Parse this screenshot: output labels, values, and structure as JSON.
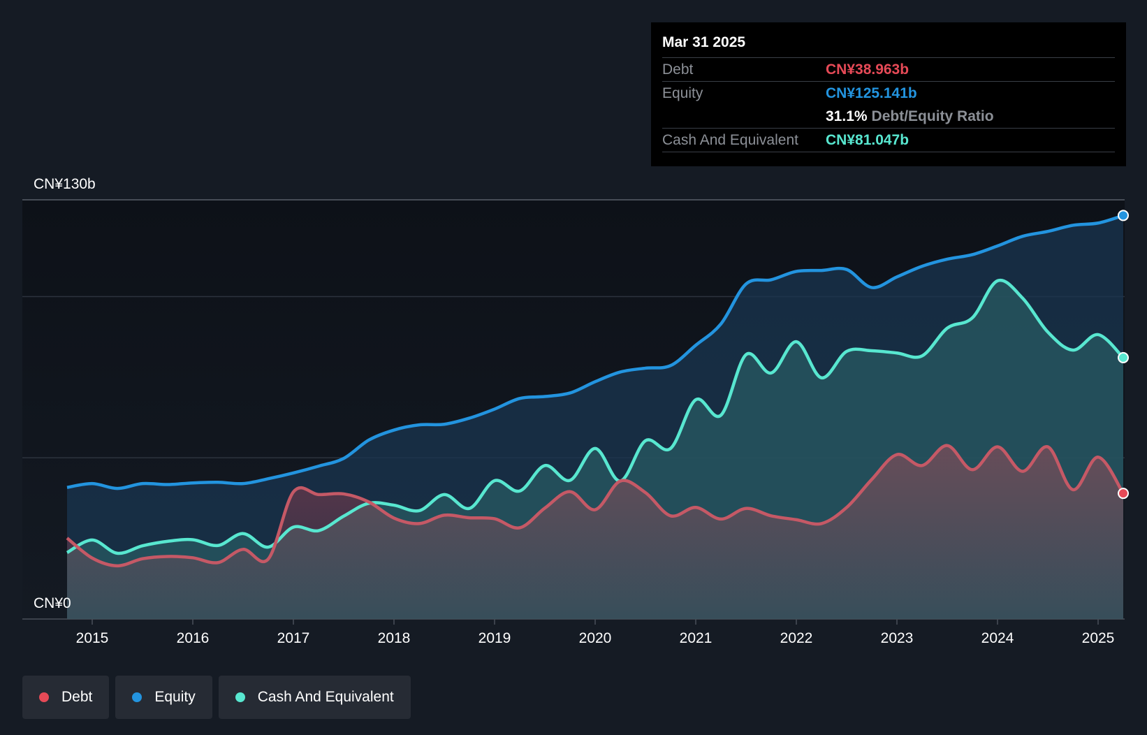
{
  "chart_data": {
    "type": "area",
    "x": [
      2014.75,
      2015.0,
      2015.25,
      2015.5,
      2015.75,
      2016.0,
      2016.25,
      2016.5,
      2016.75,
      2017.0,
      2017.25,
      2017.5,
      2017.75,
      2018.0,
      2018.25,
      2018.5,
      2018.75,
      2019.0,
      2019.25,
      2019.5,
      2019.75,
      2020.0,
      2020.25,
      2020.5,
      2020.75,
      2021.0,
      2021.25,
      2021.5,
      2021.75,
      2022.0,
      2022.25,
      2022.5,
      2022.75,
      2023.0,
      2023.25,
      2023.5,
      2023.75,
      2024.0,
      2024.25,
      2024.5,
      2024.75,
      2025.0,
      2025.25
    ],
    "series": [
      {
        "name": "Equity",
        "color": "#2394df",
        "values": [
          40.8,
          42.0,
          40.5,
          42.0,
          41.7,
          42.2,
          42.4,
          42.0,
          43.5,
          45.3,
          47.4,
          49.8,
          55.5,
          58.6,
          60.2,
          60.4,
          62.3,
          65.1,
          68.4,
          69.0,
          70.1,
          73.6,
          76.6,
          77.8,
          78.6,
          84.9,
          91.5,
          103.9,
          105.2,
          107.8,
          108.1,
          108.4,
          102.8,
          106.1,
          109.4,
          111.6,
          113.0,
          115.7,
          118.7,
          120.2,
          122.1,
          122.8,
          125.141
        ]
      },
      {
        "name": "Cash And Equivalent",
        "color": "#58e7d0",
        "values": [
          20.6,
          24.5,
          20.4,
          22.7,
          24.1,
          24.6,
          22.8,
          26.5,
          22.3,
          28.5,
          27.4,
          31.9,
          35.9,
          35.3,
          33.6,
          38.6,
          34.3,
          42.9,
          39.7,
          47.6,
          43.0,
          52.9,
          42.8,
          55.3,
          52.9,
          68.0,
          63.2,
          82.0,
          76.3,
          86.0,
          74.8,
          83.0,
          83.2,
          82.5,
          81.6,
          90.2,
          93.4,
          104.9,
          99.5,
          89.0,
          83.4,
          88.2,
          81.047
        ]
      },
      {
        "name": "Debt",
        "color": "#e64a57",
        "values": [
          25.1,
          18.9,
          16.5,
          18.7,
          19.4,
          19.0,
          17.5,
          21.6,
          18.6,
          39.4,
          38.6,
          38.8,
          36.3,
          31.3,
          29.6,
          32.2,
          31.4,
          31.1,
          28.3,
          34.4,
          39.5,
          33.9,
          42.8,
          39.2,
          32.0,
          34.6,
          31.0,
          34.3,
          32.0,
          30.8,
          29.6,
          34.6,
          43.3,
          51.0,
          47.6,
          53.8,
          46.3,
          53.4,
          45.8,
          53.4,
          40.1,
          50.2,
          38.963
        ]
      }
    ],
    "xticks": [
      2015,
      2016,
      2017,
      2018,
      2019,
      2020,
      2021,
      2022,
      2023,
      2024,
      2025
    ],
    "xtick_labels": [
      "2015",
      "2016",
      "2017",
      "2018",
      "2019",
      "2020",
      "2021",
      "2022",
      "2023",
      "2024",
      "2025"
    ],
    "ylim": [
      0,
      130
    ],
    "ylabel_top": "CN¥130b",
    "ylabel_bottom": "CN¥0"
  },
  "tooltip": {
    "date": "Mar 31 2025",
    "debt_label": "Debt",
    "debt_value": "CN¥38.963b",
    "equity_label": "Equity",
    "equity_value": "CN¥125.141b",
    "ratio_value": "31.1%",
    "ratio_label": "Debt/Equity Ratio",
    "cash_label": "Cash And Equivalent",
    "cash_value": "CN¥81.047b"
  },
  "legend": [
    {
      "label": "Debt",
      "color": "#e64a57"
    },
    {
      "label": "Equity",
      "color": "#2394df"
    },
    {
      "label": "Cash And Equivalent",
      "color": "#58e7d0"
    }
  ]
}
